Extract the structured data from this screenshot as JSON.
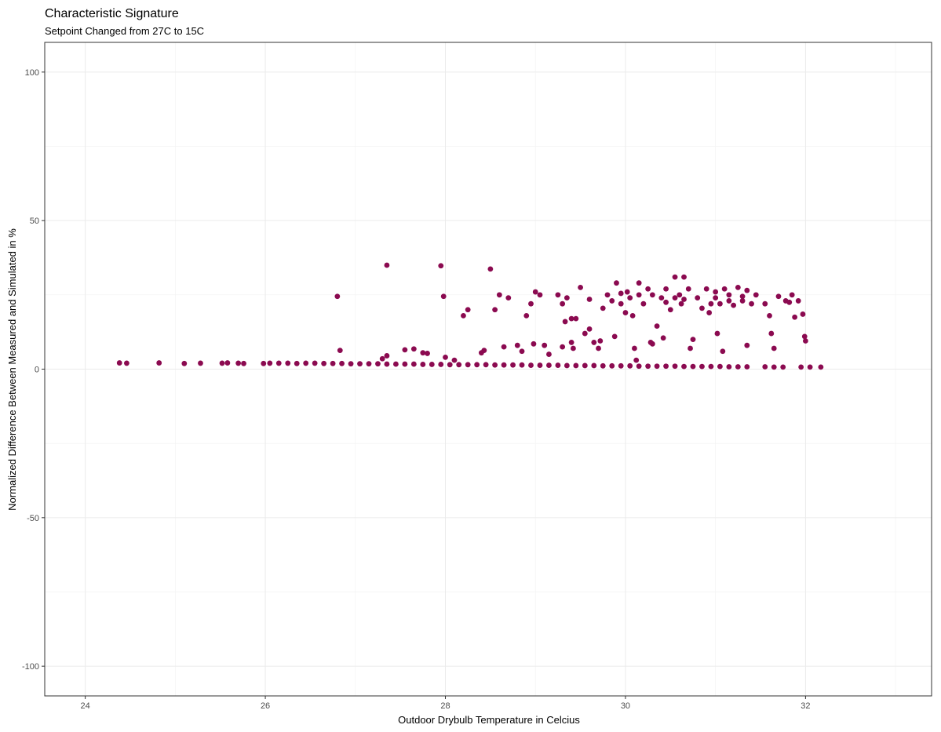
{
  "chart_data": {
    "type": "scatter",
    "title": "Characteristic Signature",
    "subtitle": "Setpoint Changed from 27C to 15C",
    "xlabel": "Outdoor Drybulb Temperature in Celcius",
    "ylabel": "Normalized Difference Between Measured and Simulated in %",
    "xlim": [
      23.55,
      33.4
    ],
    "ylim": [
      -110,
      110
    ],
    "x_ticks": [
      24,
      26,
      28,
      30,
      32
    ],
    "x_tick_labels": [
      "24",
      "26",
      "28",
      "30",
      "32"
    ],
    "y_ticks": [
      -100,
      -50,
      0,
      50,
      100
    ],
    "y_tick_labels": [
      "-100",
      "-50",
      "0",
      "50",
      "100"
    ],
    "grid": true,
    "legend": "none",
    "point_color": "#8B0A50",
    "series": [
      {
        "points": [
          [
            24.38,
            2.1
          ],
          [
            24.46,
            2.0
          ],
          [
            24.82,
            2.1
          ],
          [
            25.1,
            1.9
          ],
          [
            25.28,
            2.0
          ],
          [
            25.52,
            2.0
          ],
          [
            25.58,
            2.1
          ],
          [
            25.7,
            2.0
          ],
          [
            25.76,
            1.9
          ],
          [
            25.98,
            1.9
          ],
          [
            26.05,
            2.0
          ],
          [
            26.15,
            2.0
          ],
          [
            26.25,
            2.0
          ],
          [
            26.35,
            1.9
          ],
          [
            26.45,
            2.0
          ],
          [
            26.55,
            2.0
          ],
          [
            26.65,
            1.9
          ],
          [
            26.75,
            1.9
          ],
          [
            26.85,
            1.9
          ],
          [
            26.95,
            1.8
          ],
          [
            27.05,
            1.8
          ],
          [
            27.15,
            1.8
          ],
          [
            27.25,
            1.8
          ],
          [
            27.35,
            1.7
          ],
          [
            27.45,
            1.7
          ],
          [
            27.55,
            1.7
          ],
          [
            27.65,
            1.7
          ],
          [
            27.75,
            1.6
          ],
          [
            27.85,
            1.6
          ],
          [
            27.95,
            1.6
          ],
          [
            28.05,
            1.5
          ],
          [
            28.15,
            1.5
          ],
          [
            28.25,
            1.5
          ],
          [
            28.35,
            1.5
          ],
          [
            28.45,
            1.5
          ],
          [
            28.55,
            1.4
          ],
          [
            28.65,
            1.4
          ],
          [
            28.75,
            1.4
          ],
          [
            28.85,
            1.4
          ],
          [
            28.95,
            1.3
          ],
          [
            29.05,
            1.3
          ],
          [
            29.15,
            1.3
          ],
          [
            29.25,
            1.3
          ],
          [
            29.35,
            1.2
          ],
          [
            29.45,
            1.2
          ],
          [
            29.55,
            1.2
          ],
          [
            29.65,
            1.2
          ],
          [
            29.75,
            1.1
          ],
          [
            29.85,
            1.1
          ],
          [
            29.95,
            1.1
          ],
          [
            30.05,
            1.1
          ],
          [
            30.15,
            1.0
          ],
          [
            30.25,
            1.0
          ],
          [
            30.35,
            1.0
          ],
          [
            30.45,
            1.0
          ],
          [
            30.55,
            1.0
          ],
          [
            30.65,
            0.9
          ],
          [
            30.75,
            0.9
          ],
          [
            30.85,
            0.9
          ],
          [
            30.95,
            0.9
          ],
          [
            31.05,
            0.9
          ],
          [
            31.15,
            0.8
          ],
          [
            31.25,
            0.8
          ],
          [
            31.35,
            0.8
          ],
          [
            31.55,
            0.8
          ],
          [
            31.65,
            0.7
          ],
          [
            31.75,
            0.7
          ],
          [
            31.95,
            0.7
          ],
          [
            32.05,
            0.7
          ],
          [
            32.17,
            0.7
          ],
          [
            26.8,
            24.5
          ],
          [
            26.83,
            6.3
          ],
          [
            27.3,
            3.5
          ],
          [
            27.35,
            4.5
          ],
          [
            27.55,
            6.5
          ],
          [
            27.65,
            6.8
          ],
          [
            27.75,
            5.5
          ],
          [
            27.8,
            5.3
          ],
          [
            27.35,
            35.0
          ],
          [
            27.95,
            34.8
          ],
          [
            27.98,
            24.5
          ],
          [
            28.0,
            4.0
          ],
          [
            28.1,
            3.0
          ],
          [
            28.2,
            18.0
          ],
          [
            28.25,
            20.0
          ],
          [
            28.4,
            5.5
          ],
          [
            28.43,
            6.3
          ],
          [
            28.5,
            33.7
          ],
          [
            28.55,
            20.0
          ],
          [
            28.6,
            25.0
          ],
          [
            28.65,
            7.5
          ],
          [
            28.7,
            24.0
          ],
          [
            28.8,
            8.0
          ],
          [
            28.85,
            6.0
          ],
          [
            28.9,
            18.0
          ],
          [
            28.95,
            22.0
          ],
          [
            28.98,
            8.5
          ],
          [
            29.0,
            26.0
          ],
          [
            29.05,
            25.0
          ],
          [
            29.1,
            8.0
          ],
          [
            29.15,
            5.0
          ],
          [
            29.25,
            25.0
          ],
          [
            29.3,
            22.0
          ],
          [
            29.33,
            16.0
          ],
          [
            29.35,
            24.0
          ],
          [
            29.4,
            9.0
          ],
          [
            29.42,
            7.0
          ],
          [
            29.45,
            17.0
          ],
          [
            29.5,
            27.5
          ],
          [
            29.55,
            12.0
          ],
          [
            29.6,
            23.5
          ],
          [
            29.65,
            9.0
          ],
          [
            29.7,
            7.0
          ],
          [
            29.72,
            9.5
          ],
          [
            29.75,
            20.5
          ],
          [
            29.8,
            25.0
          ],
          [
            29.85,
            23.0
          ],
          [
            29.88,
            11.0
          ],
          [
            29.9,
            29.0
          ],
          [
            29.95,
            22.0
          ],
          [
            30.0,
            19.0
          ],
          [
            30.02,
            26.0
          ],
          [
            30.05,
            24.0
          ],
          [
            30.08,
            18.0
          ],
          [
            30.1,
            7.0
          ],
          [
            30.12,
            3.0
          ],
          [
            30.15,
            29.0
          ],
          [
            30.2,
            22.0
          ],
          [
            30.25,
            27.0
          ],
          [
            30.28,
            9.0
          ],
          [
            30.3,
            25.0
          ],
          [
            30.35,
            14.5
          ],
          [
            30.4,
            24.0
          ],
          [
            30.42,
            10.5
          ],
          [
            30.45,
            27.0
          ],
          [
            30.5,
            20.0
          ],
          [
            30.55,
            31.0
          ],
          [
            30.6,
            25.0
          ],
          [
            30.62,
            22.0
          ],
          [
            30.65,
            31.0
          ],
          [
            30.7,
            27.0
          ],
          [
            30.72,
            7.0
          ],
          [
            30.75,
            10.0
          ],
          [
            30.8,
            24.0
          ],
          [
            30.85,
            20.5
          ],
          [
            30.9,
            27.0
          ],
          [
            30.93,
            19.0
          ],
          [
            30.95,
            22.0
          ],
          [
            31.0,
            26.0
          ],
          [
            31.02,
            12.0
          ],
          [
            31.05,
            22.0
          ],
          [
            31.08,
            6.0
          ],
          [
            31.1,
            27.0
          ],
          [
            31.15,
            25.0
          ],
          [
            31.2,
            21.5
          ],
          [
            31.25,
            27.5
          ],
          [
            31.3,
            24.5
          ],
          [
            31.35,
            26.5
          ],
          [
            31.4,
            22.0
          ],
          [
            31.45,
            25.0
          ],
          [
            31.55,
            22.0
          ],
          [
            31.6,
            18.0
          ],
          [
            31.62,
            12.0
          ],
          [
            31.65,
            7.0
          ],
          [
            31.7,
            24.5
          ],
          [
            31.78,
            23.0
          ],
          [
            31.82,
            22.5
          ],
          [
            31.85,
            25.0
          ],
          [
            31.88,
            17.5
          ],
          [
            31.92,
            23.0
          ],
          [
            31.97,
            18.5
          ],
          [
            31.99,
            11.0
          ],
          [
            32.0,
            9.5
          ],
          [
            29.6,
            13.5
          ],
          [
            30.3,
            8.5
          ],
          [
            30.65,
            23.5
          ],
          [
            29.4,
            17.0
          ],
          [
            29.3,
            7.5
          ],
          [
            31.0,
            24.0
          ],
          [
            31.15,
            23.0
          ],
          [
            30.45,
            22.5
          ],
          [
            30.15,
            25.0
          ],
          [
            29.95,
            25.5
          ],
          [
            30.55,
            24.0
          ],
          [
            31.3,
            23.0
          ],
          [
            31.35,
            8.0
          ]
        ]
      }
    ]
  }
}
